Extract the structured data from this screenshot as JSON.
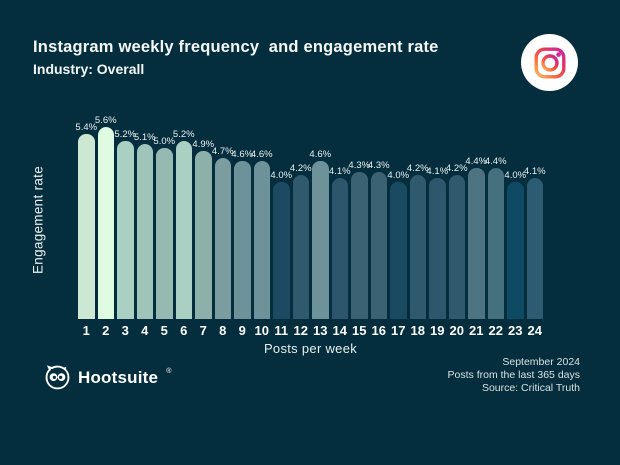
{
  "header": {
    "title": "Instagram weekly frequency  and engagement rate",
    "subtitle": "Industry: Overall"
  },
  "chart_data": {
    "type": "bar",
    "title": "Instagram weekly frequency and engagement rate",
    "subtitle": "Industry: Overall",
    "xlabel": "Posts per week",
    "ylabel": "Engagement rate",
    "categories": [
      "1",
      "2",
      "3",
      "4",
      "5",
      "6",
      "7",
      "8",
      "9",
      "10",
      "11",
      "12",
      "13",
      "14",
      "15",
      "16",
      "17",
      "18",
      "19",
      "20",
      "21",
      "22",
      "23",
      "24"
    ],
    "values": [
      5.4,
      5.6,
      5.2,
      5.1,
      5.0,
      5.2,
      4.9,
      4.7,
      4.6,
      4.6,
      4.0,
      4.2,
      4.6,
      4.1,
      4.3,
      4.3,
      4.0,
      4.2,
      4.1,
      4.2,
      4.4,
      4.4,
      4.0,
      4.1
    ],
    "labels": [
      "5.4%",
      "5.6%",
      "5.2%",
      "5.1%",
      "5.0%",
      "5.2%",
      "4.9%",
      "4.7%",
      "4.6%",
      "4.6%",
      "4.0%",
      "4.2%",
      "4.6%",
      "4.1%",
      "4.3%",
      "4.3%",
      "4.0%",
      "4.2%",
      "4.1%",
      "4.2%",
      "4.4%",
      "4.4%",
      "4.0%",
      "4.1%"
    ],
    "bar_colors": [
      "#cde8d2",
      "#dffce3",
      "#aad0c3",
      "#9fc5ba",
      "#96bab1",
      "#aad0c3",
      "#8db0ab",
      "#7b9da0",
      "#6e929a",
      "#6e929a",
      "#1d4a62",
      "#2f5a6e",
      "#6e929a",
      "#2b566b",
      "#3a6273",
      "#3a6273",
      "#1a4a62",
      "#2f5a6e",
      "#2d576c",
      "#2f5a6e",
      "#4e7481",
      "#45707e",
      "#0e4a64",
      "#2d5b72"
    ],
    "ylim": [
      0,
      6
    ],
    "grid": false,
    "legend": "none",
    "bar_top_shape": "rounded"
  },
  "icons": {
    "instagram": "instagram-camera-glyph",
    "hootsuite": "hootsuite-owl"
  },
  "footer": {
    "brand": "Hootsuite",
    "registered": "®",
    "date_line": "September 2024",
    "range_line": "Posts from the last 365 days",
    "source_line": "Source: Critical Truth"
  },
  "colors": {
    "background": "#042e3e",
    "title_text": "#f4f7f6",
    "footnote_text": "#d7e1e1",
    "instagram_gradient": [
      "#fdba5e",
      "#f75a3c",
      "#e1306c",
      "#c32aa3"
    ]
  }
}
